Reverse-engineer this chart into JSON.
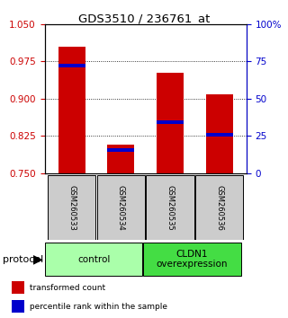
{
  "title": "GDS3510 / 236761_at",
  "samples": [
    "GSM260533",
    "GSM260534",
    "GSM260535",
    "GSM260536"
  ],
  "red_bar_tops": [
    1.005,
    0.807,
    0.952,
    0.908
  ],
  "red_bar_bottom": 0.75,
  "blue_marker_values": [
    0.967,
    0.796,
    0.853,
    0.828
  ],
  "ylim": [
    0.75,
    1.05
  ],
  "yticks_left": [
    0.75,
    0.825,
    0.9,
    0.975,
    1.05
  ],
  "yticks_right": [
    0,
    25,
    50,
    75,
    100
  ],
  "groups": [
    {
      "label": "control",
      "color": "#aaffaa"
    },
    {
      "label": "CLDN1\noverexpression",
      "color": "#44dd44"
    }
  ],
  "protocol_label": "protocol",
  "legend": [
    {
      "color": "#cc0000",
      "label": " transformed count"
    },
    {
      "color": "#0000cc",
      "label": " percentile rank within the sample"
    }
  ],
  "bar_color": "#cc0000",
  "blue_color": "#0000cc",
  "tick_color_left": "#cc0000",
  "tick_color_right": "#0000cc",
  "sample_box_color": "#cccccc",
  "bar_width": 0.55
}
